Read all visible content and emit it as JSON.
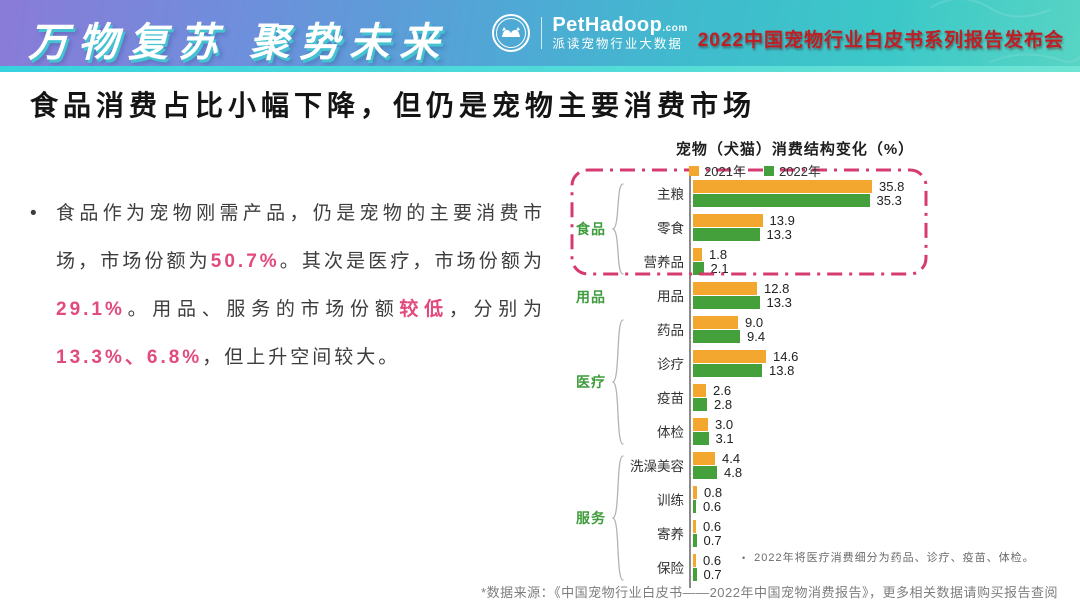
{
  "header": {
    "slogan": "万物复苏 聚势未来",
    "logo": {
      "brand": "PetHadoop",
      "domain": ".com",
      "subtitle": "派读宠物行业大数据"
    },
    "event_title": "2022中国宠物行业白皮书系列报告发布会"
  },
  "page": {
    "title": "食品消费占比小幅下降，但仍是宠物主要消费市场",
    "bullet": "•"
  },
  "body_paragraph": {
    "segments": [
      {
        "text": "食品作为宠物刚需产品，仍是宠物的主要消费市场，市场份额为",
        "highlight": false
      },
      {
        "text": "50.7%",
        "highlight": true
      },
      {
        "text": "。其次是医疗，市场份额为",
        "highlight": false
      },
      {
        "text": "29.1%",
        "highlight": true
      },
      {
        "text": "。用品、服务的市场份额",
        "highlight": false
      },
      {
        "text": "较低",
        "highlight": true
      },
      {
        "text": "，分别为",
        "highlight": false
      },
      {
        "text": "13.3%、6.8%",
        "highlight": true
      },
      {
        "text": "，但上升空间较大。",
        "highlight": false
      }
    ]
  },
  "chart_data": {
    "type": "bar",
    "orientation": "horizontal",
    "title": "宠物（犬猫）消费结构变化（%）",
    "xlim": [
      0,
      40
    ],
    "grid": false,
    "legend_position": "top",
    "legend": [
      {
        "label": "2021年",
        "color": "#F3A72F"
      },
      {
        "label": "2022年",
        "color": "#43A03B"
      }
    ],
    "categories": [
      "主粮",
      "零食",
      "营养品",
      "用品",
      "药品",
      "诊疗",
      "疫苗",
      "体检",
      "洗澡美容",
      "训练",
      "寄养",
      "保险"
    ],
    "series": [
      {
        "name": "2021年",
        "color": "#F3A72F",
        "values": [
          35.8,
          13.9,
          1.8,
          12.8,
          9.0,
          14.6,
          2.6,
          3.0,
          4.4,
          0.8,
          0.6,
          0.6
        ]
      },
      {
        "name": "2022年",
        "color": "#43A03B",
        "values": [
          35.3,
          13.3,
          2.1,
          13.3,
          9.4,
          13.8,
          2.8,
          3.1,
          4.8,
          0.6,
          0.7,
          0.7
        ]
      }
    ],
    "groups": [
      {
        "label": "食品",
        "start": 0,
        "end": 2,
        "bracket": true,
        "highlight_box": true
      },
      {
        "label": "用品",
        "start": 3,
        "end": 3,
        "bracket": false,
        "highlight_box": false
      },
      {
        "label": "医疗",
        "start": 4,
        "end": 7,
        "bracket": true,
        "highlight_box": false
      },
      {
        "label": "服务",
        "start": 8,
        "end": 11,
        "bracket": true,
        "highlight_box": false
      }
    ],
    "highlight_box_color": "#D63A72",
    "footnote_marker": "•",
    "footnote": "2022年将医疗消费细分为药品、诊疗、疫苗、体检。"
  },
  "footer": {
    "source": "*数据来源：《中国宠物行业白皮书——2022年中国宠物消费报告》，更多相关数据请购买报告查阅"
  }
}
